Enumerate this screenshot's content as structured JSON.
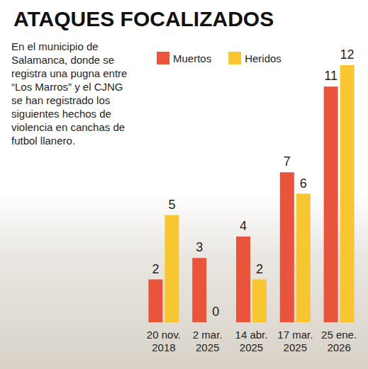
{
  "chart_data": {
    "type": "bar",
    "title": "ATAQUES FOCALIZADOS",
    "subtitle": "En el municipio de Salamanca, donde se registra una pugna entre “Los Marros” y el CJNG se han registrado los siguientes hechos de violencia en canchas de futbol llanero.",
    "categories": [
      "20 nov. 2018",
      "2 mar. 2025",
      "14 abr. 2025",
      "17 mar. 2025",
      "25 ene. 2026"
    ],
    "series": [
      {
        "name": "Muertos",
        "color": "#e9543c",
        "values": [
          2,
          3,
          4,
          7,
          11
        ]
      },
      {
        "name": "Heridos",
        "color": "#f8c631",
        "values": [
          5,
          0,
          2,
          6,
          12
        ]
      }
    ],
    "ylim": [
      0,
      12
    ],
    "grid": false,
    "legend": "top",
    "data_labels": true,
    "tick_labels": "x"
  }
}
